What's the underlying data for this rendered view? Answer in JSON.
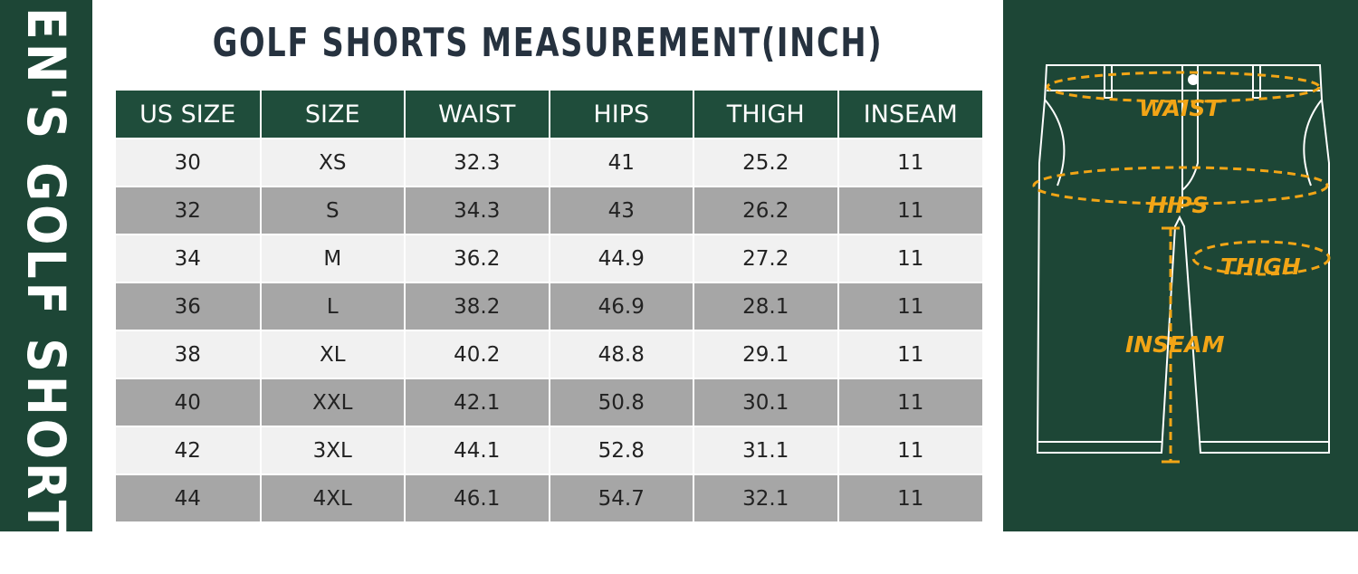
{
  "side_label": "MEN'S GOLF SHORTS",
  "title": "GOLF SHORTS MEASUREMENT(INCH)",
  "table": {
    "header": [
      "US SIZE",
      "SIZE",
      "WAIST",
      "HIPS",
      "THIGH",
      "INSEAM"
    ],
    "rows": [
      [
        30,
        "XS",
        32.3,
        41,
        25.2,
        11
      ],
      [
        32,
        "S",
        34.3,
        43,
        26.2,
        11
      ],
      [
        34,
        "M",
        36.2,
        44.9,
        27.2,
        11
      ],
      [
        36,
        "L",
        38.2,
        46.9,
        28.1,
        11
      ],
      [
        38,
        "XL",
        40.2,
        48.8,
        29.1,
        11
      ],
      [
        40,
        "XXL",
        42.1,
        50.8,
        30.1,
        11
      ],
      [
        42,
        "3XL",
        44.1,
        52.8,
        31.1,
        11
      ],
      [
        44,
        "4XL",
        46.1,
        54.7,
        32.1,
        11
      ]
    ]
  },
  "diagram": {
    "labels": [
      "WAIST",
      "HIPS",
      "THIGH",
      "INSEAM"
    ]
  }
}
